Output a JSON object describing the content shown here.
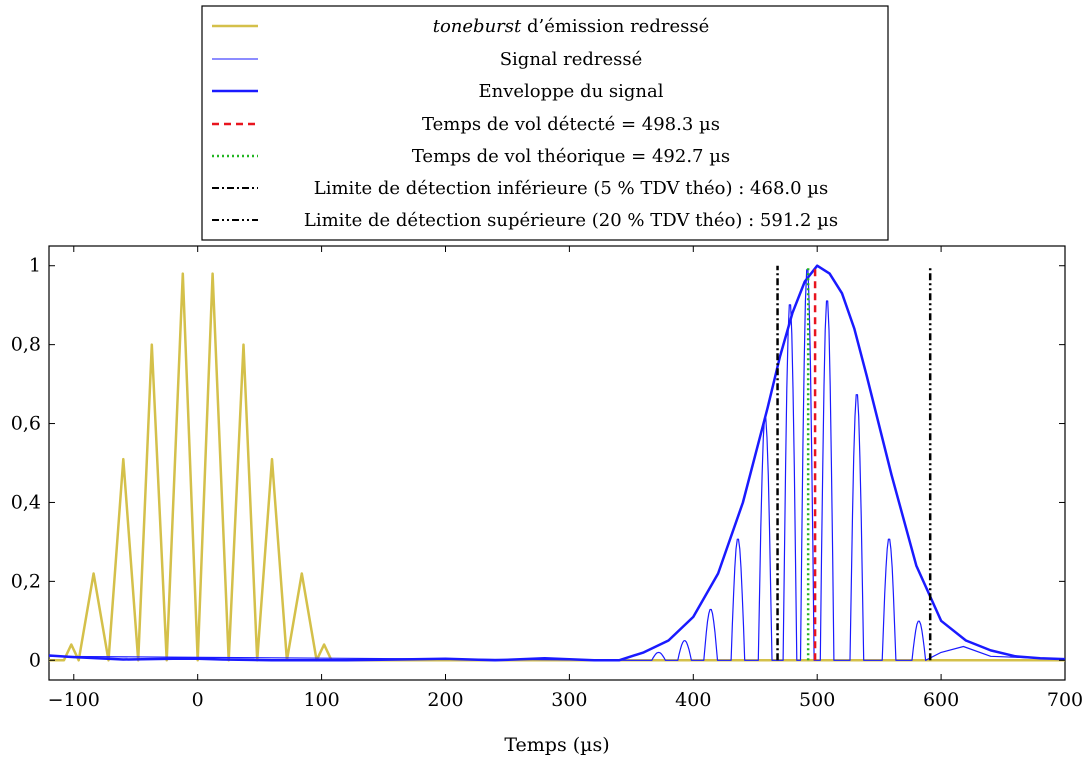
{
  "chart_data": {
    "type": "line",
    "xlabel": "Temps (µs)",
    "ylabel": "",
    "xlim": [
      -120,
      700
    ],
    "ylim": [
      -0.05,
      1.05
    ],
    "x_ticks": [
      -100,
      0,
      100,
      200,
      300,
      400,
      500,
      600,
      700
    ],
    "x_tick_labels": [
      "−100",
      "0",
      "100",
      "200",
      "300",
      "400",
      "500",
      "600",
      "700"
    ],
    "y_ticks": [
      0,
      0.2,
      0.4,
      0.6,
      0.8,
      1
    ],
    "y_tick_labels": [
      "0",
      "0,2",
      "0,4",
      "0,6",
      "0,8",
      "1"
    ],
    "grid": false,
    "legend_position": "top-center",
    "series": [
      {
        "name_italic": "toneburst",
        "name_rest": " d’émission redressé",
        "color": "#d4c04a",
        "style": "solid-thick",
        "x": [
          -120,
          -108,
          -102,
          -96,
          -84,
          -72,
          -60,
          -48,
          -37,
          -25,
          -12,
          0,
          12,
          25,
          37,
          48,
          60,
          72,
          84,
          96,
          102,
          108,
          120,
          400,
          700
        ],
        "y": [
          0,
          0,
          0.04,
          0,
          0.22,
          0,
          0.51,
          0,
          0.8,
          0,
          0.98,
          0,
          0.98,
          0,
          0.8,
          0,
          0.51,
          0,
          0.22,
          0,
          0.04,
          0,
          0,
          0,
          0
        ]
      },
      {
        "name": "Signal redressé",
        "color": "#1a1aff",
        "style": "solid-thin",
        "peaks_x": [
          372,
          393,
          414,
          436,
          458,
          478,
          492,
          508,
          532,
          558,
          582
        ],
        "peaks_y": [
          0.02,
          0.05,
          0.13,
          0.31,
          0.62,
          0.91,
          1.0,
          0.92,
          0.68,
          0.31,
          0.1
        ],
        "envelope_only_x": [
          -120,
          350,
          360,
          600,
          700
        ]
      },
      {
        "name": "Enveloppe du signal",
        "color": "#1a1aff",
        "style": "solid-thick",
        "x": [
          -120,
          -100,
          -60,
          -20,
          0,
          20,
          60,
          120,
          160,
          200,
          240,
          280,
          320,
          340,
          360,
          380,
          400,
          420,
          440,
          460,
          470,
          480,
          490,
          500,
          510,
          520,
          530,
          540,
          560,
          580,
          600,
          620,
          640,
          660,
          680,
          700
        ],
        "y": [
          0.012,
          0.008,
          0.002,
          0.004,
          0.004,
          0.002,
          0.0,
          0.0,
          0.002,
          0.004,
          0.0,
          0.005,
          0.0,
          0.0,
          0.02,
          0.05,
          0.11,
          0.22,
          0.4,
          0.64,
          0.77,
          0.88,
          0.96,
          1.0,
          0.98,
          0.93,
          0.84,
          0.72,
          0.47,
          0.24,
          0.1,
          0.05,
          0.025,
          0.01,
          0.005,
          0.003
        ]
      }
    ],
    "vlines": [
      {
        "name": "Temps de vol détecté = 498.3 µs",
        "x": 498.3,
        "color": "#e8141e",
        "style": "dashed"
      },
      {
        "name": "Temps de vol théorique = 492.7 µs",
        "x": 492.7,
        "color": "#22b522",
        "style": "dotted"
      },
      {
        "name": "Limite de détection inférieure (5 % TDV théo) : 468.0 µs",
        "x": 468.0,
        "color": "#000000",
        "style": "dashdot"
      },
      {
        "name": "Limite de détection supérieure (20 % TDV théo) : 591.2 µs",
        "x": 591.2,
        "color": "#000000",
        "style": "dashdotdot"
      }
    ]
  }
}
